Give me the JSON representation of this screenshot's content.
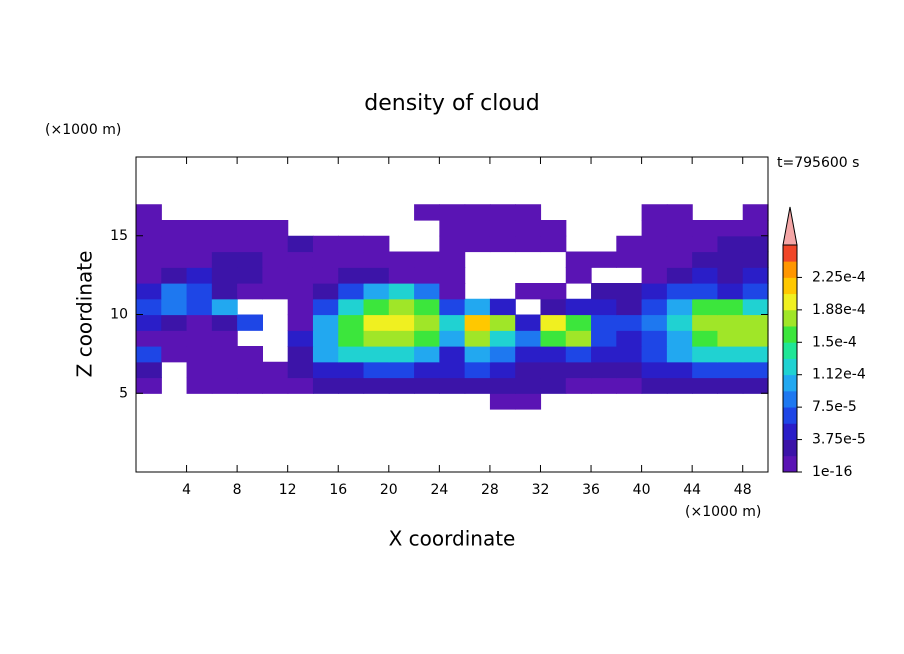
{
  "chart_data": {
    "type": "contour",
    "title": "density of cloud",
    "xlabel": "X coordinate",
    "ylabel": "Z coordinate",
    "x_unit": "(×1000 m)",
    "y_unit": "(×1000 m)",
    "time_label": "t=795600 s",
    "xlim": [
      0,
      50
    ],
    "ylim": [
      0,
      20
    ],
    "xticks": [
      4,
      8,
      12,
      16,
      20,
      24,
      28,
      32,
      36,
      40,
      44,
      48
    ],
    "yticks": [
      5,
      10,
      15
    ],
    "x": [
      1,
      3,
      5,
      7,
      9,
      11,
      13,
      15,
      17,
      19,
      21,
      23,
      25,
      27,
      29,
      31,
      33,
      35,
      37,
      39,
      41,
      43,
      45,
      47,
      49
    ],
    "y": [
      4.5,
      5.5,
      6.5,
      7.5,
      8.5,
      9.5,
      10.5,
      11.5,
      12.5,
      13.5,
      14.5,
      15.5,
      16.5
    ],
    "z": [
      [
        null,
        null,
        null,
        null,
        null,
        null,
        null,
        null,
        null,
        null,
        null,
        null,
        null,
        null,
        1e-05,
        1e-05,
        null,
        null,
        null,
        null,
        null,
        null,
        null,
        null,
        null
      ],
      [
        1e-05,
        null,
        1e-05,
        1e-05,
        1e-05,
        1e-05,
        1e-05,
        3e-05,
        3e-05,
        3e-05,
        3e-05,
        3e-05,
        3e-05,
        3e-05,
        3e-05,
        3e-05,
        3e-05,
        1e-05,
        1e-05,
        1e-05,
        3e-05,
        3e-05,
        3e-05,
        3e-05,
        3e-05
      ],
      [
        3e-05,
        null,
        1e-05,
        1e-05,
        1e-05,
        1e-05,
        3e-05,
        5e-05,
        5e-05,
        7e-05,
        7e-05,
        5e-05,
        5e-05,
        7e-05,
        5e-05,
        3e-05,
        3e-05,
        3e-05,
        3e-05,
        3e-05,
        5e-05,
        5e-05,
        7e-05,
        7e-05,
        7e-05
      ],
      [
        7e-05,
        1e-05,
        1e-05,
        1e-05,
        1e-05,
        null,
        3e-05,
        0.00011,
        0.00013,
        0.00013,
        0.00013,
        0.00011,
        5e-05,
        0.00011,
        9e-05,
        5e-05,
        5e-05,
        7e-05,
        5e-05,
        5e-05,
        7e-05,
        0.00011,
        0.00013,
        0.00013,
        0.00013
      ],
      [
        1e-05,
        1e-05,
        1e-05,
        1e-05,
        null,
        null,
        5e-05,
        0.00011,
        0.00015,
        0.00017,
        0.00017,
        0.00015,
        0.00011,
        0.00017,
        0.00013,
        9e-05,
        0.00015,
        0.00017,
        7e-05,
        5e-05,
        7e-05,
        0.00011,
        0.00015,
        0.00017,
        0.00017
      ],
      [
        5e-05,
        3e-05,
        1e-05,
        3e-05,
        7e-05,
        null,
        1e-05,
        0.00011,
        0.00015,
        0.00019,
        0.00019,
        0.00017,
        0.00013,
        0.00021,
        0.00017,
        5e-05,
        0.00019,
        0.00015,
        7e-05,
        7e-05,
        9e-05,
        0.00013,
        0.00017,
        0.00017,
        0.00017
      ],
      [
        7e-05,
        9e-05,
        7e-05,
        0.00011,
        null,
        null,
        1e-05,
        7e-05,
        0.00013,
        0.00015,
        0.00017,
        0.00015,
        7e-05,
        0.00011,
        5e-05,
        null,
        3e-05,
        5e-05,
        5e-05,
        3e-05,
        7e-05,
        0.00011,
        0.00015,
        0.00015,
        0.00013
      ],
      [
        5e-05,
        9e-05,
        7e-05,
        3e-05,
        1e-05,
        1e-05,
        1e-05,
        3e-05,
        7e-05,
        0.00011,
        0.00013,
        9e-05,
        1e-05,
        null,
        null,
        1e-05,
        1e-05,
        null,
        3e-05,
        3e-05,
        5e-05,
        7e-05,
        7e-05,
        5e-05,
        7e-05
      ],
      [
        1e-05,
        3e-05,
        5e-05,
        3e-05,
        3e-05,
        1e-05,
        1e-05,
        1e-05,
        3e-05,
        3e-05,
        1e-05,
        1e-05,
        1e-05,
        null,
        null,
        null,
        null,
        1e-05,
        null,
        null,
        1e-05,
        3e-05,
        5e-05,
        3e-05,
        5e-05
      ],
      [
        1e-05,
        1e-05,
        1e-05,
        3e-05,
        3e-05,
        1e-05,
        1e-05,
        1e-05,
        1e-05,
        1e-05,
        1e-05,
        1e-05,
        1e-05,
        null,
        null,
        null,
        null,
        1e-05,
        1e-05,
        1e-05,
        1e-05,
        1e-05,
        3e-05,
        3e-05,
        3e-05
      ],
      [
        1e-05,
        1e-05,
        1e-05,
        1e-05,
        1e-05,
        1e-05,
        3e-05,
        1e-05,
        1e-05,
        1e-05,
        null,
        null,
        1e-05,
        1e-05,
        1e-05,
        1e-05,
        1e-05,
        null,
        null,
        1e-05,
        1e-05,
        1e-05,
        1e-05,
        3e-05,
        3e-05
      ],
      [
        1e-05,
        1e-05,
        1e-05,
        1e-05,
        1e-05,
        1e-05,
        null,
        null,
        null,
        null,
        null,
        null,
        1e-05,
        1e-05,
        1e-05,
        1e-05,
        1e-05,
        null,
        null,
        null,
        1e-05,
        1e-05,
        1e-05,
        1e-05,
        1e-05
      ],
      [
        1e-05,
        null,
        null,
        null,
        null,
        null,
        null,
        null,
        null,
        null,
        null,
        1e-05,
        1e-05,
        1e-05,
        1e-05,
        1e-05,
        null,
        null,
        null,
        null,
        1e-05,
        1e-05,
        null,
        null,
        1e-05
      ]
    ],
    "colorbar": {
      "clim": [
        1e-16,
        0.0002625
      ],
      "levels": [
        1e-16,
        1.875e-05,
        3.75e-05,
        5.625e-05,
        7.5e-05,
        9.375e-05,
        0.0001125,
        0.00013125,
        0.00015,
        0.00016875,
        0.0001875,
        0.00020625,
        0.000225,
        0.00024375
      ],
      "colors": [
        "#5a14b4",
        "#3c14a8",
        "#2a1ec8",
        "#1e46e6",
        "#1e78f0",
        "#22a8f0",
        "#20d2d2",
        "#20e696",
        "#3ce63c",
        "#a0e628",
        "#f0f020",
        "#ffc800",
        "#ff9600",
        "#f04628"
      ],
      "ticks": [
        {
          "value": 1e-16,
          "label": "1e-16"
        },
        {
          "value": 3.75e-05,
          "label": "3.75e-5"
        },
        {
          "value": 7.5e-05,
          "label": "7.5e-5"
        },
        {
          "value": 0.0001125,
          "label": "1.12e-4"
        },
        {
          "value": 0.00015,
          "label": "1.5e-4"
        },
        {
          "value": 0.0001875,
          "label": "1.88e-4"
        },
        {
          "value": 0.000225,
          "label": "2.25e-4"
        }
      ]
    }
  }
}
